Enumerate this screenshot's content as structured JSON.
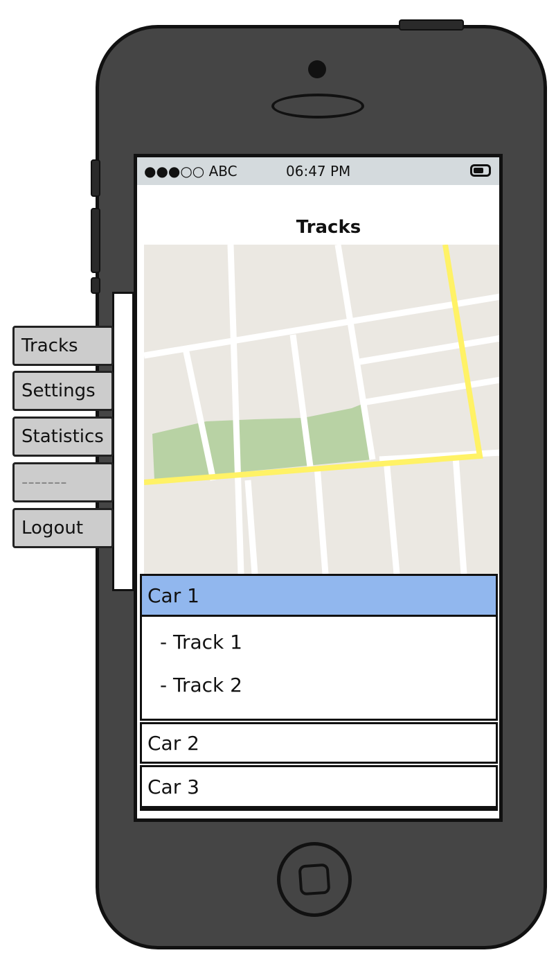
{
  "status_bar": {
    "signal": "●●●○○ ABC",
    "time": "06:47 PM",
    "battery_icon": "battery-icon"
  },
  "header": {
    "title": "Tracks"
  },
  "cars": [
    {
      "label": "Car 1",
      "selected": true,
      "tracks": [
        "- Track 1",
        "- Track 2"
      ]
    },
    {
      "label": "Car 2",
      "selected": false
    },
    {
      "label": "Car 3",
      "selected": false
    }
  ],
  "side_menu": {
    "items": [
      "Tracks",
      "Settings",
      "Statistics",
      "-------",
      "Logout"
    ]
  },
  "colors": {
    "selected_row": "#91b7ee",
    "map_background": "#ebe8e2",
    "map_road": "#ffffff",
    "map_route": "#fff266",
    "map_park": "#b8d2a4",
    "phone_body": "#454545",
    "status_bar": "#d4dadd"
  }
}
